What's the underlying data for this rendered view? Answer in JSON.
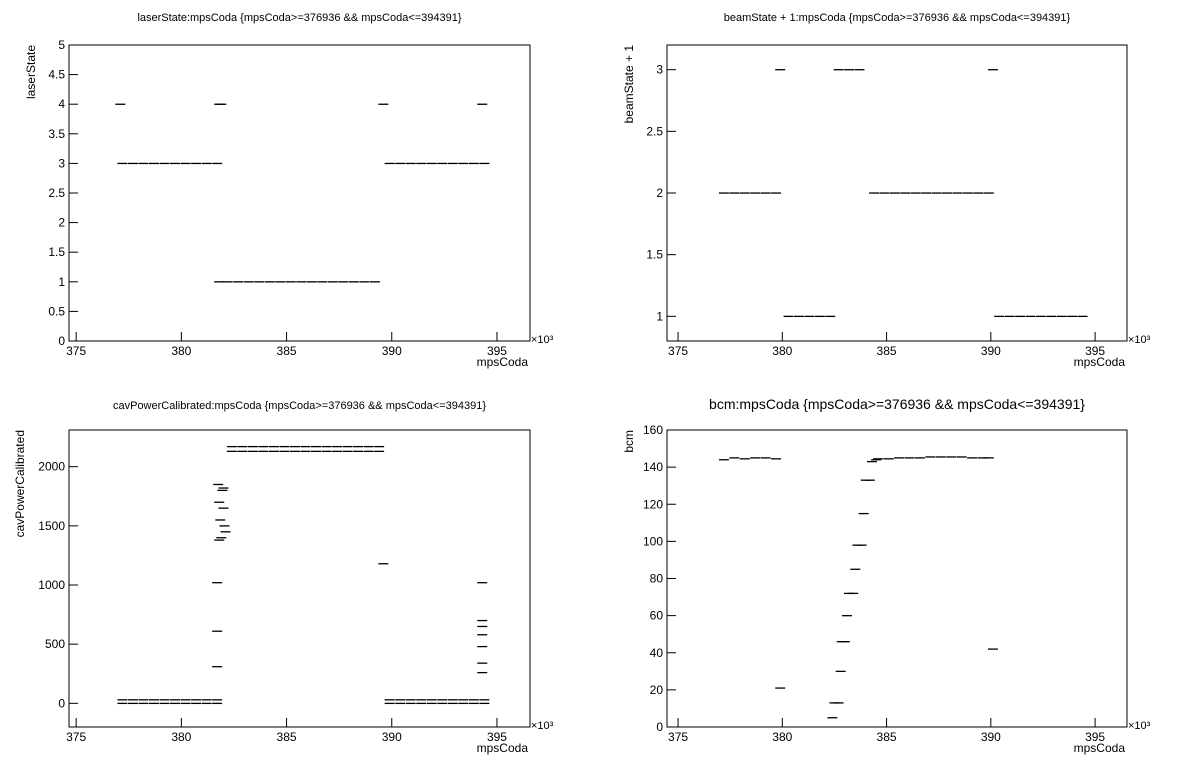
{
  "chart_data": [
    {
      "type": "scatter",
      "title": "laserState:mpsCoda {mpsCoda>=376936 && mpsCoda<=394391}",
      "xlabel": "mpsCoda",
      "ylabel": "laserState",
      "x_multiplier": "×10³",
      "color": "#000000",
      "xlim": [
        374.66,
        396.57
      ],
      "xticks": [
        375,
        380,
        385,
        390,
        395
      ],
      "ylim": [
        0,
        5
      ],
      "yticks": [
        0,
        0.5,
        1,
        1.5,
        2,
        2.5,
        3,
        3.5,
        4,
        4.5,
        5
      ],
      "x": [
        377.2,
        377.7,
        378.2,
        378.7,
        379.2,
        379.7,
        380.2,
        380.7,
        381.2,
        381.7,
        382.2,
        382.7,
        383.2,
        383.7,
        384.2,
        384.7,
        385.2,
        385.7,
        386.2,
        386.7,
        387.2,
        387.7,
        388.2,
        388.7,
        389.2,
        381.8,
        389.9,
        390.4,
        390.9,
        391.4,
        391.9,
        392.4,
        392.9,
        393.4,
        393.9,
        394.4,
        377.1,
        381.8,
        381.9,
        389.6,
        394.3
      ],
      "values": [
        3,
        3,
        3,
        3,
        3,
        3,
        3,
        3,
        3,
        3,
        1,
        1,
        1,
        1,
        1,
        1,
        1,
        1,
        1,
        1,
        1,
        1,
        1,
        1,
        1,
        1,
        3,
        3,
        3,
        3,
        3,
        3,
        3,
        3,
        3,
        3,
        4,
        4,
        4,
        4,
        4
      ]
    },
    {
      "type": "scatter",
      "title": "beamState + 1:mpsCoda {mpsCoda>=376936 && mpsCoda<=394391}",
      "xlabel": "mpsCoda",
      "ylabel": "beamState + 1",
      "x_multiplier": "×10³",
      "color": "#000000",
      "xlim": [
        374.47,
        396.53
      ],
      "xticks": [
        375,
        380,
        385,
        390,
        395
      ],
      "ylim": [
        0.8,
        3.2
      ],
      "yticks": [
        1,
        1.5,
        2,
        2.5,
        3
      ],
      "x": [
        377.2,
        377.7,
        378.2,
        378.7,
        379.2,
        379.7,
        380.3,
        380.8,
        381.3,
        381.8,
        382.3,
        382.7,
        383.2,
        383.7,
        384.4,
        384.9,
        385.4,
        385.9,
        386.4,
        386.9,
        387.4,
        387.9,
        388.4,
        388.9,
        389.4,
        389.9,
        390.4,
        390.9,
        391.4,
        391.9,
        392.4,
        392.9,
        393.4,
        393.9,
        394.4,
        379.9,
        390.1
      ],
      "values": [
        2,
        2,
        2,
        2,
        2,
        2,
        1,
        1,
        1,
        1,
        1,
        3,
        3,
        3,
        2,
        2,
        2,
        2,
        2,
        2,
        2,
        2,
        2,
        2,
        2,
        2,
        1,
        1,
        1,
        1,
        1,
        1,
        1,
        1,
        1,
        3,
        3
      ]
    },
    {
      "type": "scatter",
      "title": "cavPowerCalibrated:mpsCoda {mpsCoda>=376936 && mpsCoda<=394391}",
      "xlabel": "mpsCoda",
      "ylabel": "cavPowerCalibrated",
      "x_multiplier": "×10³",
      "color": "#000000",
      "xlim": [
        374.66,
        396.57
      ],
      "xticks": [
        375,
        380,
        385,
        390,
        395
      ],
      "ylim": [
        -200,
        2310
      ],
      "yticks": [
        0,
        500,
        1000,
        1500,
        2000
      ],
      "x": [
        377.2,
        377.7,
        378.2,
        378.7,
        379.2,
        379.7,
        380.2,
        380.7,
        381.2,
        381.7,
        377.2,
        377.7,
        378.2,
        378.7,
        379.2,
        379.7,
        380.2,
        380.7,
        381.2,
        381.7,
        382.4,
        382.9,
        383.4,
        383.9,
        384.4,
        384.9,
        385.4,
        385.9,
        386.4,
        386.9,
        387.4,
        387.9,
        388.4,
        388.9,
        389.4,
        382.4,
        382.9,
        383.4,
        383.9,
        384.4,
        384.9,
        385.4,
        385.9,
        386.4,
        386.9,
        387.4,
        387.9,
        388.4,
        388.9,
        389.4,
        389.9,
        390.4,
        390.9,
        391.4,
        391.9,
        392.4,
        392.9,
        393.4,
        393.9,
        394.4,
        389.9,
        390.4,
        390.9,
        391.4,
        391.9,
        392.4,
        392.9,
        393.4,
        393.9,
        394.4,
        381.75,
        381.8,
        381.85,
        381.9,
        381.95,
        382.0,
        382.05,
        382.1,
        381.8,
        382.0,
        381.7,
        381.7,
        381.7,
        389.6,
        394.3,
        394.3,
        394.3,
        394.3,
        394.3,
        394.3,
        394.3
      ],
      "values": [
        30,
        30,
        30,
        30,
        30,
        30,
        30,
        30,
        30,
        30,
        0,
        0,
        0,
        0,
        0,
        0,
        0,
        0,
        0,
        0,
        2170,
        2170,
        2170,
        2170,
        2170,
        2170,
        2170,
        2170,
        2170,
        2170,
        2170,
        2170,
        2170,
        2170,
        2170,
        2130,
        2130,
        2130,
        2130,
        2130,
        2130,
        2130,
        2130,
        2130,
        2130,
        2130,
        2130,
        2130,
        2130,
        2130,
        30,
        30,
        30,
        30,
        30,
        30,
        30,
        30,
        30,
        30,
        0,
        0,
        0,
        0,
        0,
        0,
        0,
        0,
        0,
        0,
        1850,
        1700,
        1550,
        1400,
        1800,
        1650,
        1500,
        1450,
        1380,
        1820,
        1020,
        610,
        310,
        1180,
        1020,
        700,
        650,
        580,
        480,
        340,
        260
      ]
    },
    {
      "type": "scatter",
      "title": "bcm:mpsCoda {mpsCoda>=376936 && mpsCoda<=394391}",
      "xlabel": "mpsCoda",
      "ylabel": "bcm",
      "x_multiplier": "×10³",
      "color": "#000000",
      "xlim": [
        374.47,
        396.53
      ],
      "xticks": [
        375,
        380,
        385,
        390,
        395
      ],
      "ylim": [
        0,
        160
      ],
      "yticks": [
        0,
        20,
        40,
        60,
        80,
        100,
        120,
        140,
        160
      ],
      "x": [
        377.2,
        377.7,
        378.2,
        378.7,
        379.2,
        379.7,
        379.9,
        382.4,
        382.5,
        382.7,
        382.8,
        382.85,
        383.0,
        383.1,
        383.2,
        383.4,
        383.5,
        383.6,
        383.8,
        383.9,
        384.0,
        384.2,
        384.3,
        384.5,
        384.6,
        385.1,
        385.6,
        386.1,
        386.6,
        387.1,
        387.6,
        388.1,
        388.6,
        389.1,
        389.6,
        389.9,
        390.1
      ],
      "values": [
        144,
        145,
        144.5,
        145,
        145,
        144.5,
        21,
        5,
        13,
        13,
        30,
        46,
        46,
        60,
        72,
        72,
        85,
        98,
        98,
        115,
        133,
        133,
        143,
        144,
        144.5,
        144.5,
        145,
        145,
        145,
        145.5,
        145.5,
        145.5,
        145.5,
        145,
        145,
        145,
        42
      ]
    }
  ]
}
